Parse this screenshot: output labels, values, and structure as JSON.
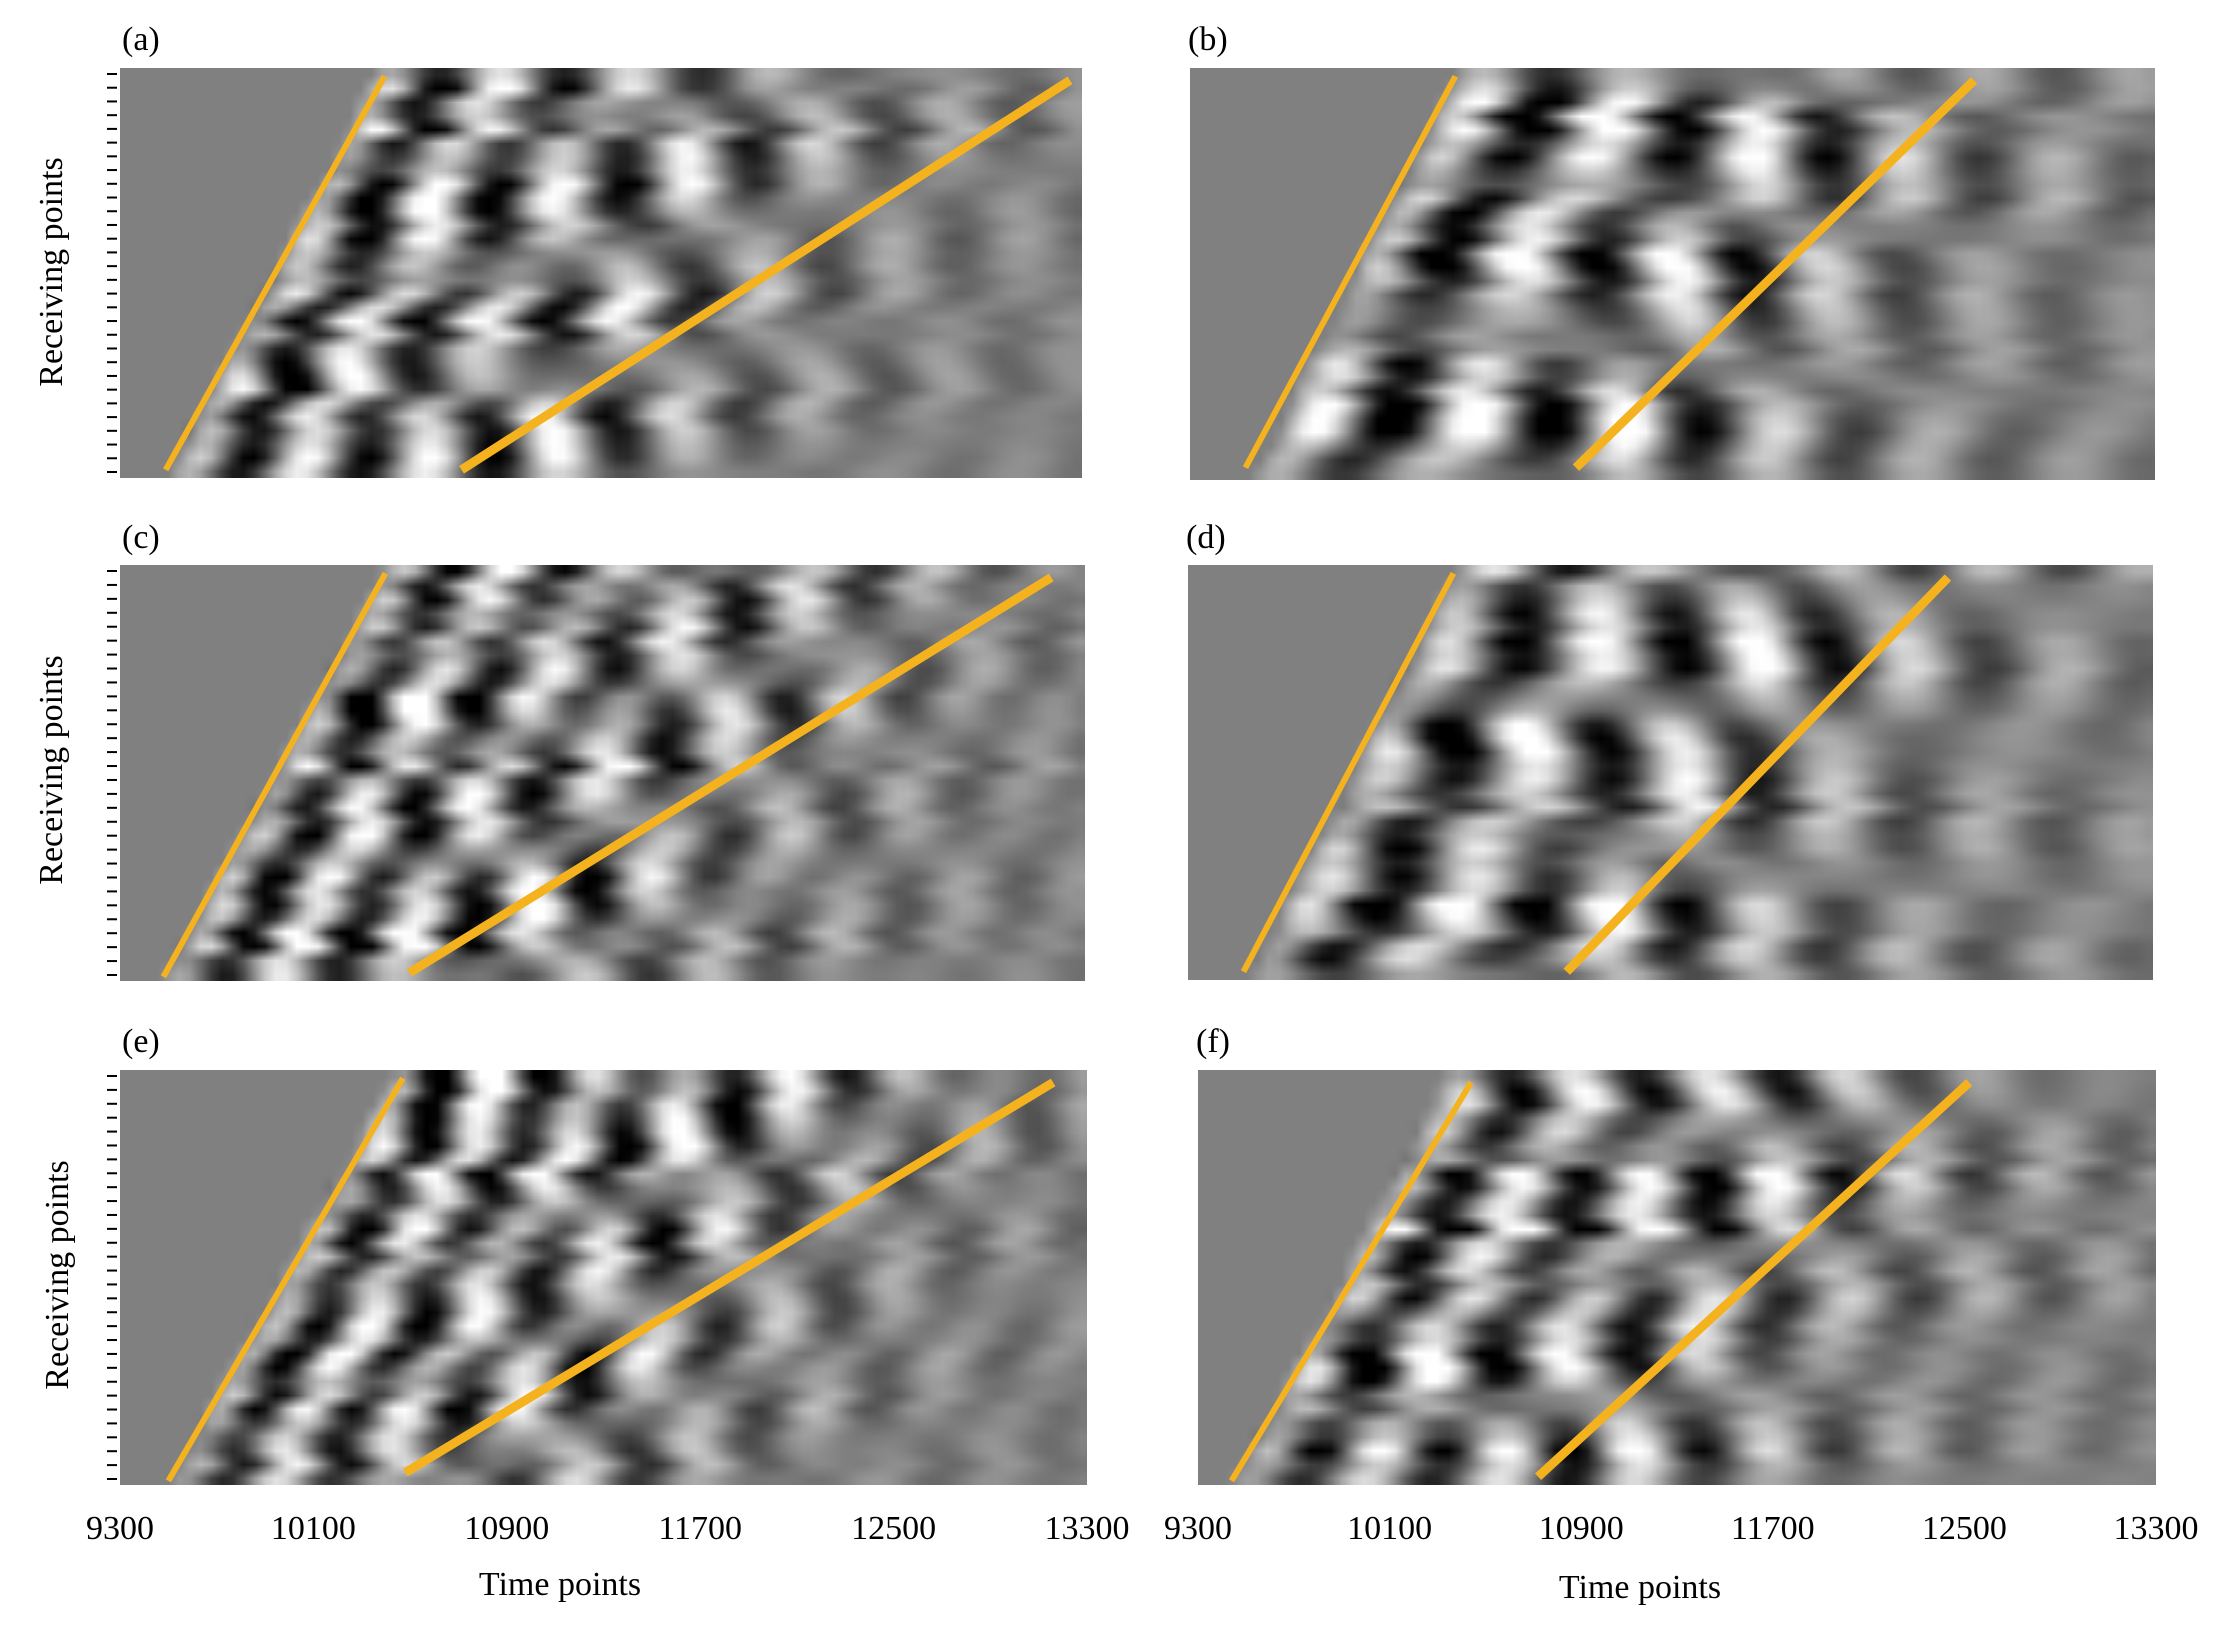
{
  "chart_data": [
    {
      "type": "heatmap",
      "panel_label": "(a)",
      "ylabel": "Receiving points",
      "xlabel": "",
      "x_tick_labels": [],
      "y_tick_count": 30,
      "xlim": [
        9300,
        13300
      ],
      "colormap": "grayscale",
      "annotation_lines": [
        {
          "x1": 9490,
          "y1": 0.02,
          "x2": 10400,
          "y2": 0.98
        },
        {
          "x1": 10720,
          "y1": 0.02,
          "x2": 13250,
          "y2": 0.97
        }
      ],
      "wave_params": {
        "onset_slope": 850,
        "onset_x": 9500,
        "freq": 0.016,
        "decay": 1400,
        "seed": 1
      }
    },
    {
      "type": "heatmap",
      "panel_label": "(b)",
      "ylabel": "",
      "xlabel": "",
      "x_tick_labels": [],
      "xlim": [
        9300,
        13300
      ],
      "colormap": "grayscale",
      "annotation_lines": [
        {
          "x1": 9530,
          "y1": 0.03,
          "x2": 10400,
          "y2": 0.98
        },
        {
          "x1": 10900,
          "y1": 0.03,
          "x2": 12550,
          "y2": 0.97
        }
      ],
      "wave_params": {
        "onset_slope": 850,
        "onset_x": 9550,
        "freq": 0.012,
        "decay": 1800,
        "seed": 2
      }
    },
    {
      "type": "heatmap",
      "panel_label": "(c)",
      "ylabel": "Receiving points",
      "xlabel": "",
      "x_tick_labels": [],
      "y_tick_count": 30,
      "xlim": [
        9300,
        13300
      ],
      "colormap": "grayscale",
      "annotation_lines": [
        {
          "x1": 9480,
          "y1": 0.01,
          "x2": 10400,
          "y2": 0.98
        },
        {
          "x1": 10500,
          "y1": 0.02,
          "x2": 13160,
          "y2": 0.97
        }
      ],
      "wave_params": {
        "onset_slope": 900,
        "onset_x": 9480,
        "freq": 0.018,
        "decay": 1600,
        "seed": 3
      }
    },
    {
      "type": "heatmap",
      "panel_label": "(d)",
      "ylabel": "",
      "xlabel": "",
      "x_tick_labels": [],
      "xlim": [
        9300,
        13300
      ],
      "colormap": "grayscale",
      "annotation_lines": [
        {
          "x1": 9530,
          "y1": 0.02,
          "x2": 10400,
          "y2": 0.98
        },
        {
          "x1": 10870,
          "y1": 0.02,
          "x2": 12450,
          "y2": 0.97
        }
      ],
      "wave_params": {
        "onset_slope": 850,
        "onset_x": 9550,
        "freq": 0.012,
        "decay": 1800,
        "seed": 4
      }
    },
    {
      "type": "heatmap",
      "panel_label": "(e)",
      "ylabel": "Receiving points",
      "xlabel": "Time points",
      "x_tick_labels": [
        "9300",
        "10100",
        "10900",
        "11700",
        "12500",
        "13300"
      ],
      "y_tick_count": 30,
      "xlim": [
        9300,
        13300
      ],
      "colormap": "grayscale",
      "annotation_lines": [
        {
          "x1": 9500,
          "y1": 0.01,
          "x2": 10470,
          "y2": 0.98
        },
        {
          "x1": 10480,
          "y1": 0.03,
          "x2": 13160,
          "y2": 0.97
        }
      ],
      "wave_params": {
        "onset_slope": 920,
        "onset_x": 9500,
        "freq": 0.019,
        "decay": 1500,
        "seed": 5
      }
    },
    {
      "type": "heatmap",
      "panel_label": "(f)",
      "ylabel": "",
      "xlabel": "Time points",
      "x_tick_labels": [
        "9300",
        "10100",
        "10900",
        "11700",
        "12500",
        "13300"
      ],
      "xlim": [
        9300,
        13300
      ],
      "colormap": "grayscale",
      "annotation_lines": [
        {
          "x1": 9440,
          "y1": 0.01,
          "x2": 10440,
          "y2": 0.97
        },
        {
          "x1": 10720,
          "y1": 0.02,
          "x2": 12520,
          "y2": 0.97
        }
      ],
      "wave_params": {
        "onset_slope": 880,
        "onset_x": 9450,
        "freq": 0.015,
        "decay": 1700,
        "seed": 6
      }
    }
  ],
  "colors": {
    "annotation_line": "#f5b21f",
    "background": "#ffffff",
    "heatmap_mid": "#7f7f7f"
  }
}
